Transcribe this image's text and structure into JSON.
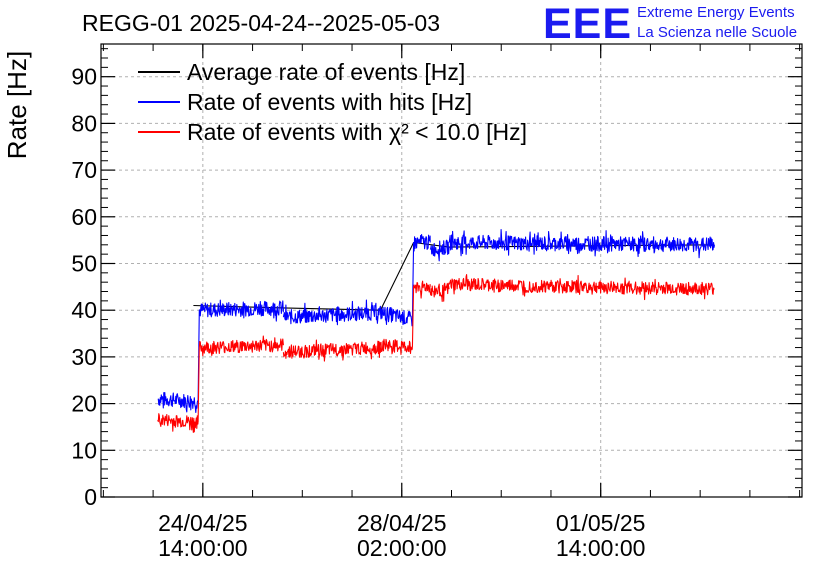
{
  "header": {
    "title": "REGG-01 2025-04-24--2025-05-03",
    "logo_text": "EEE",
    "logo_line1": "Extreme Energy Events",
    "logo_line2": "La Scienza nelle Scuole"
  },
  "colors": {
    "average": "#000000",
    "hits": "#0000ff",
    "chi2": "#ff0000",
    "grid": "#b0b0b0",
    "logo": "#1b1bf0"
  },
  "chart_data": {
    "type": "line",
    "title": "REGG-01 2025-04-24--2025-05-03",
    "ylabel": "Rate [Hz]",
    "xlabel": "",
    "ylim": [
      0,
      97
    ],
    "yticks": [
      0,
      10,
      20,
      30,
      40,
      50,
      60,
      70,
      80,
      90
    ],
    "xlim": [
      "2025-04-22 19:00",
      "2025-05-05 03:00"
    ],
    "xticks": [
      {
        "time": "2025-04-24 14:00",
        "label1": "24/04/25",
        "label2": "14:00:00"
      },
      {
        "time": "2025-04-28 02:00",
        "label1": "28/04/25",
        "label2": "02:00:00"
      },
      {
        "time": "2025-05-01 14:00",
        "label1": "01/05/25",
        "label2": "14:00:00"
      }
    ],
    "grid": true,
    "legend_position": "top-left",
    "series": [
      {
        "name": "Average rate of events [Hz]",
        "color": "#000000",
        "noise": 0,
        "segments": [
          [
            [
              "2025-04-24 10:00",
              41.0
            ],
            [
              "2025-04-26 00:00",
              40.5
            ],
            [
              "2025-04-27 17:00",
              40.0
            ],
            [
              "2025-04-28 07:00",
              54.5
            ],
            [
              "2025-04-28 22:00",
              53.5
            ],
            [
              "2025-05-03 14:00",
              54.0
            ]
          ]
        ]
      },
      {
        "name": "Rate of events with hits [Hz]",
        "color": "#0000ff",
        "noise": 1.6,
        "segments": [
          [
            [
              "2025-04-23 19:00",
              21.0
            ],
            [
              "2025-04-24 12:00",
              20.5
            ]
          ],
          [
            [
              "2025-04-24 12:00",
              20.5
            ],
            [
              "2025-04-24 12:30",
              40.0
            ],
            [
              "2025-04-26 00:00",
              40.5
            ]
          ],
          [
            [
              "2025-04-26 00:00",
              38.5
            ],
            [
              "2025-04-27 17:00",
              39.5
            ]
          ],
          [
            [
              "2025-04-27 17:00",
              39.5
            ],
            [
              "2025-04-28 06:30",
              38.0
            ]
          ],
          [
            [
              "2025-04-28 06:30",
              38.0
            ],
            [
              "2025-04-28 07:00",
              54.5
            ],
            [
              "2025-04-28 14:00",
              54.5
            ]
          ],
          [
            [
              "2025-04-28 14:00",
              53.0
            ],
            [
              "2025-04-28 22:00",
              53.5
            ]
          ],
          [
            [
              "2025-04-28 22:00",
              54.5
            ],
            [
              "2025-05-03 14:00",
              54.0
            ]
          ]
        ]
      },
      {
        "name": "Rate of events with χ² < 10.0 [Hz]",
        "color": "#ff0000",
        "noise": 1.4,
        "segments": [
          [
            [
              "2025-04-23 19:00",
              16.5
            ],
            [
              "2025-04-24 12:00",
              16.0
            ]
          ],
          [
            [
              "2025-04-24 12:00",
              16.0
            ],
            [
              "2025-04-24 12:30",
              32.0
            ],
            [
              "2025-04-26 00:00",
              32.5
            ]
          ],
          [
            [
              "2025-04-26 00:00",
              31.0
            ],
            [
              "2025-04-27 17:00",
              32.0
            ]
          ],
          [
            [
              "2025-04-27 17:00",
              32.5
            ],
            [
              "2025-04-28 06:30",
              32.0
            ]
          ],
          [
            [
              "2025-04-28 06:30",
              32.0
            ],
            [
              "2025-04-28 07:00",
              45.0
            ],
            [
              "2025-04-28 14:00",
              45.0
            ]
          ],
          [
            [
              "2025-04-28 14:00",
              44.0
            ],
            [
              "2025-04-28 22:00",
              44.5
            ]
          ],
          [
            [
              "2025-04-28 22:00",
              45.5
            ],
            [
              "2025-05-03 14:00",
              44.5
            ]
          ]
        ]
      }
    ]
  }
}
